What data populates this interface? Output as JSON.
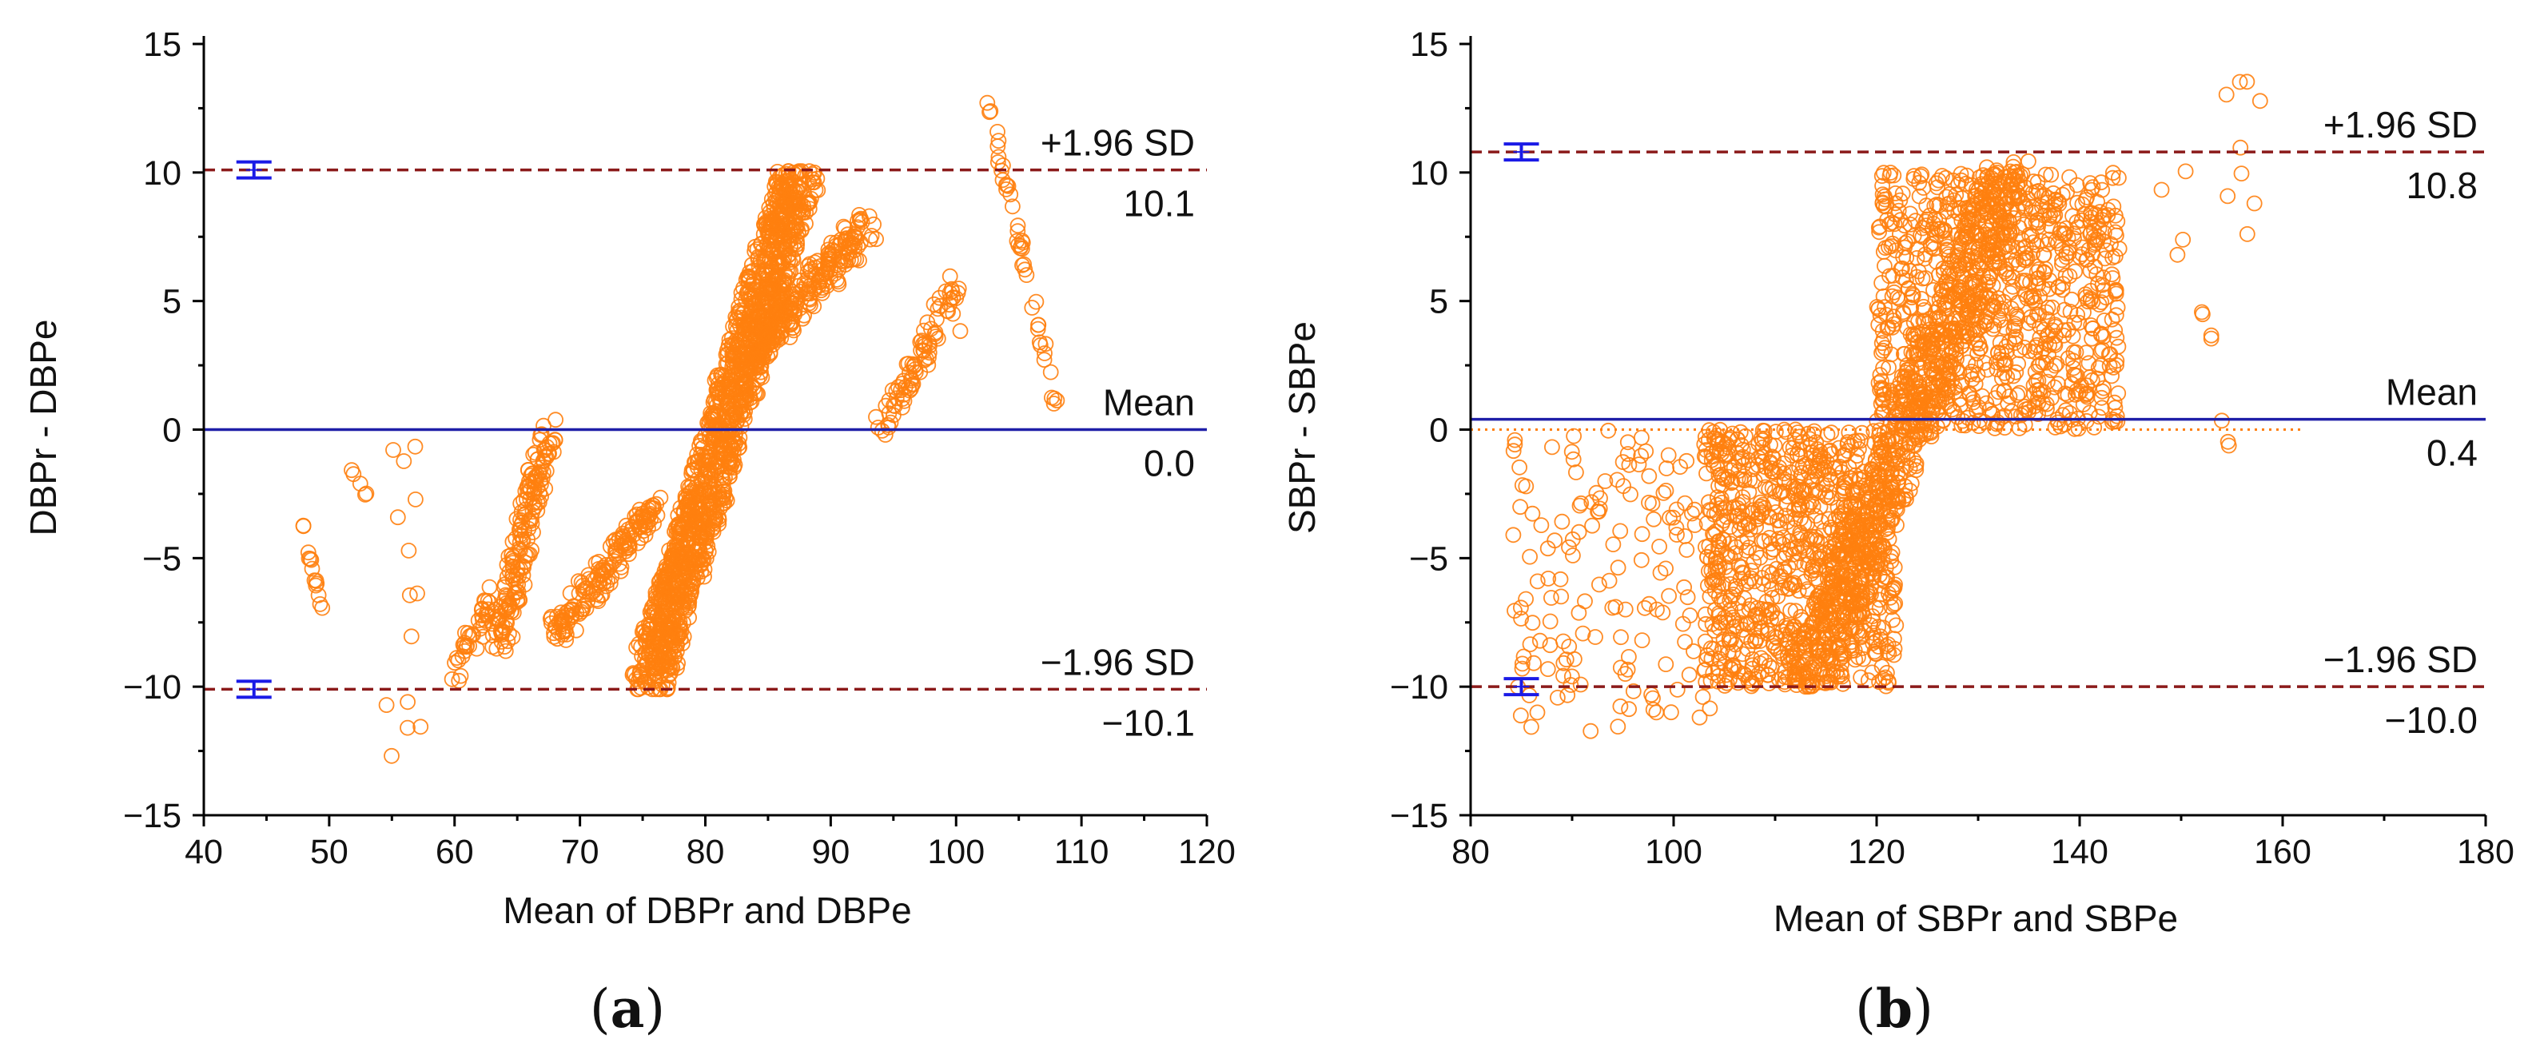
{
  "chart_data": [
    {
      "type": "scatter",
      "panel": "(a)",
      "panel_letter": "a",
      "xlabel": "Mean of DBPr and DBPe",
      "ylabel": "DBPr - DBPe",
      "xlim": [
        40,
        120
      ],
      "ylim": [
        -15,
        15
      ],
      "xticks": [
        "40",
        "50",
        "60",
        "70",
        "80",
        "90",
        "100",
        "110",
        "120"
      ],
      "yticks": [
        "−15",
        "−10",
        "−5",
        "0",
        "5",
        "10",
        "15"
      ],
      "reference_lines": [
        {
          "name": "upper",
          "label": "+1.96 SD",
          "value_label": "10.1",
          "y": 10.1,
          "style": "dashed",
          "color": "#8b1a1a"
        },
        {
          "name": "mean",
          "label": "Mean",
          "value_label": "0.0",
          "y": 0.0,
          "style": "solid",
          "color": "#1f1fa8"
        },
        {
          "name": "lower",
          "label": "−1.96 SD",
          "value_label": "−10.1",
          "y": -10.1,
          "style": "dashed",
          "color": "#8b1a1a"
        }
      ],
      "ci_markers": [
        {
          "x": 44,
          "y": 10.1
        },
        {
          "x": 44,
          "y": -10.1
        }
      ],
      "regression_line": null,
      "point_clusters": [
        {
          "name": "diag-main",
          "type": "diagonal",
          "x_range": [
            75.5,
            87.5
          ],
          "y_range": [
            -10,
            10
          ],
          "width": 3.2,
          "count": 1400
        },
        {
          "name": "diag-upper",
          "type": "diagonal",
          "x_range": [
            84,
            93
          ],
          "y_range": [
            3,
            8
          ],
          "width": 2.0,
          "count": 220
        },
        {
          "name": "cl-65",
          "type": "diagonal",
          "x_range": [
            63.5,
            67.5
          ],
          "y_range": [
            -8.5,
            0
          ],
          "width": 1.5,
          "count": 180
        },
        {
          "name": "cl-70",
          "type": "diagonal",
          "x_range": [
            68,
            76
          ],
          "y_range": [
            -8,
            -3
          ],
          "width": 1.2,
          "count": 170
        },
        {
          "name": "cl-62",
          "type": "diagonal",
          "x_range": [
            60,
            63
          ],
          "y_range": [
            -9.5,
            -6.5
          ],
          "width": 0.6,
          "count": 40
        },
        {
          "name": "cl-96",
          "type": "diagonal",
          "x_range": [
            94,
            100
          ],
          "y_range": [
            0,
            5.5
          ],
          "width": 1.0,
          "count": 80
        },
        {
          "name": "cl-103",
          "type": "diagonal_down",
          "x_range": [
            102.5,
            108
          ],
          "y_range": [
            1,
            12.8
          ],
          "width": 0.35,
          "count": 45
        },
        {
          "name": "cl-48",
          "type": "vertical",
          "x_range": [
            47.5,
            49.5
          ],
          "y_range": [
            -7,
            -3
          ],
          "width": 0.3,
          "count": 14
        },
        {
          "name": "cl-52",
          "type": "vertical",
          "x_range": [
            51.5,
            53
          ],
          "y_range": [
            -2.6,
            -1.3
          ],
          "width": 0.2,
          "count": 5
        },
        {
          "name": "cl-56",
          "type": "scatter",
          "x_range": [
            54.5,
            57.5
          ],
          "y_range": [
            -12.8,
            -0.2
          ],
          "count": 14
        },
        {
          "name": "cl-100",
          "type": "vertical",
          "x_range": [
            99.5,
            100.5
          ],
          "y_range": [
            3.5,
            6
          ],
          "width": 0.3,
          "count": 5
        }
      ]
    },
    {
      "type": "scatter",
      "panel": "(b)",
      "panel_letter": "b",
      "xlabel": "Mean of SBPr and SBPe",
      "ylabel": "SBPr - SBPe",
      "xlim": [
        80,
        180
      ],
      "ylim": [
        -15,
        15
      ],
      "xticks": [
        "80",
        "100",
        "120",
        "140",
        "160",
        "180"
      ],
      "yticks": [
        "−15",
        "−10",
        "−5",
        "0",
        "5",
        "10",
        "15"
      ],
      "reference_lines": [
        {
          "name": "upper",
          "label": "+1.96 SD",
          "value_label": "10.8",
          "y": 10.8,
          "style": "dashed",
          "color": "#8b1a1a"
        },
        {
          "name": "mean",
          "label": "Mean",
          "value_label": "0.4",
          "y": 0.4,
          "style": "solid",
          "color": "#1f1fa8"
        },
        {
          "name": "lower",
          "label": "−1.96 SD",
          "value_label": "−10.0",
          "y": -10.0,
          "style": "dashed",
          "color": "#8b1a1a"
        }
      ],
      "ci_markers": [
        {
          "x": 85,
          "y": 10.8
        },
        {
          "x": 85,
          "y": -10.0
        }
      ],
      "regression_line": {
        "y": 0.0,
        "x_range": [
          80,
          162
        ],
        "style": "dotted",
        "color": "#ff7f0e"
      },
      "point_clusters": [
        {
          "name": "blob-left",
          "type": "box",
          "x_range": [
            103,
            122
          ],
          "y_range": [
            -10,
            0
          ],
          "count": 900
        },
        {
          "name": "blob-right",
          "type": "box",
          "x_range": [
            120,
            144
          ],
          "y_range": [
            0,
            10
          ],
          "count": 900
        },
        {
          "name": "diag-band",
          "type": "diagonal",
          "x_range": [
            113,
            133
          ],
          "y_range": [
            -10,
            10
          ],
          "width": 5,
          "count": 700
        },
        {
          "name": "sparse-left",
          "type": "box",
          "x_range": [
            84,
            104
          ],
          "y_range": [
            -11.8,
            0
          ],
          "count": 160
        },
        {
          "name": "outlier-149",
          "type": "scatter",
          "x_range": [
            148,
            151
          ],
          "y_range": [
            6.5,
            11
          ],
          "count": 4
        },
        {
          "name": "outlier-152",
          "type": "vertical",
          "x_range": [
            151.5,
            153
          ],
          "y_range": [
            3.5,
            5
          ],
          "width": 0.3,
          "count": 4
        },
        {
          "name": "outlier-155",
          "type": "scatter",
          "x_range": [
            153.5,
            158
          ],
          "y_range": [
            7,
            13.7
          ],
          "count": 9
        },
        {
          "name": "outlier-154-low",
          "type": "vertical",
          "x_range": [
            154,
            155
          ],
          "y_range": [
            -1,
            0.5
          ],
          "width": 0.2,
          "count": 3
        }
      ]
    }
  ],
  "colors": {
    "points": "#ff7f0e",
    "mean_line": "#1f1fa8",
    "sd_line": "#8b1a1a",
    "ci_marker": "#1a1ae6"
  }
}
